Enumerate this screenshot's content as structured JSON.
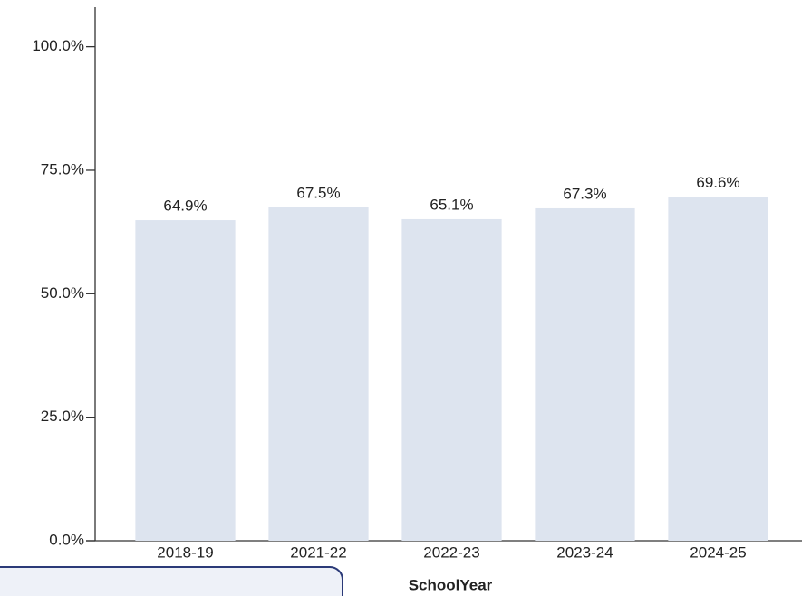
{
  "chart_data": {
    "type": "bar",
    "x_label": "SchoolYear",
    "categories": [
      "2018-19",
      "2021-22",
      "2022-23",
      "2023-24",
      "2024-25"
    ],
    "values": [
      64.9,
      67.5,
      65.1,
      67.3,
      69.6
    ],
    "value_labels": [
      "64.9%",
      "67.5%",
      "65.1%",
      "67.3%",
      "69.6%"
    ],
    "color": "#dde4ef",
    "ylim": [
      0,
      108
    ],
    "yticks": [
      {
        "value": 0,
        "label": "0.0%"
      },
      {
        "value": 25,
        "label": "25.0%"
      },
      {
        "value": 50,
        "label": "50.0%"
      },
      {
        "value": 75,
        "label": "75.0%"
      },
      {
        "value": 100,
        "label": "100.0%"
      }
    ],
    "grid": false
  }
}
